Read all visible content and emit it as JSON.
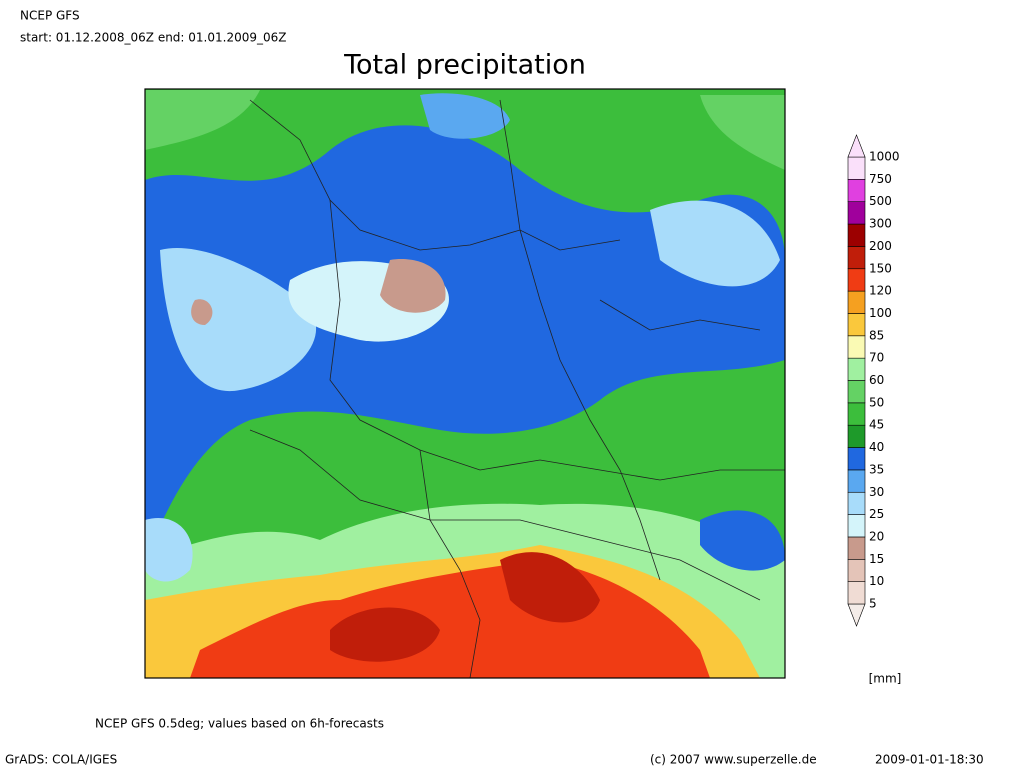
{
  "header": {
    "model": "NCEP GFS",
    "period": "start: 01.12.2008_06Z  end: 01.01.2009_06Z"
  },
  "title": "Total precipitation",
  "colorbar": {
    "levels": [
      5,
      10,
      15,
      20,
      25,
      30,
      35,
      40,
      45,
      50,
      60,
      70,
      85,
      100,
      120,
      150,
      200,
      300,
      500,
      750,
      1000
    ],
    "colors": [
      "#f4ece8",
      "#f0dcd4",
      "#e4c4b8",
      "#c89a8c",
      "#d4f4fa",
      "#a8dcfa",
      "#5aa8f0",
      "#2068e0",
      "#1e9a2a",
      "#3cbe3c",
      "#64d264",
      "#a0f0a0",
      "#fafab4",
      "#fac83c",
      "#f5a020",
      "#f03c14",
      "#c01e0a",
      "#9c0000",
      "#a0009c",
      "#e040e0",
      "#fae0fa"
    ],
    "unit": "[mm]"
  },
  "footer": {
    "note": "NCEP GFS 0.5deg; values based on 6h-forecasts",
    "software": "GrADS: COLA/IGES",
    "copyright": "(c) 2007 www.superzelle.de",
    "timestamp": "2009-01-01-18:30"
  }
}
